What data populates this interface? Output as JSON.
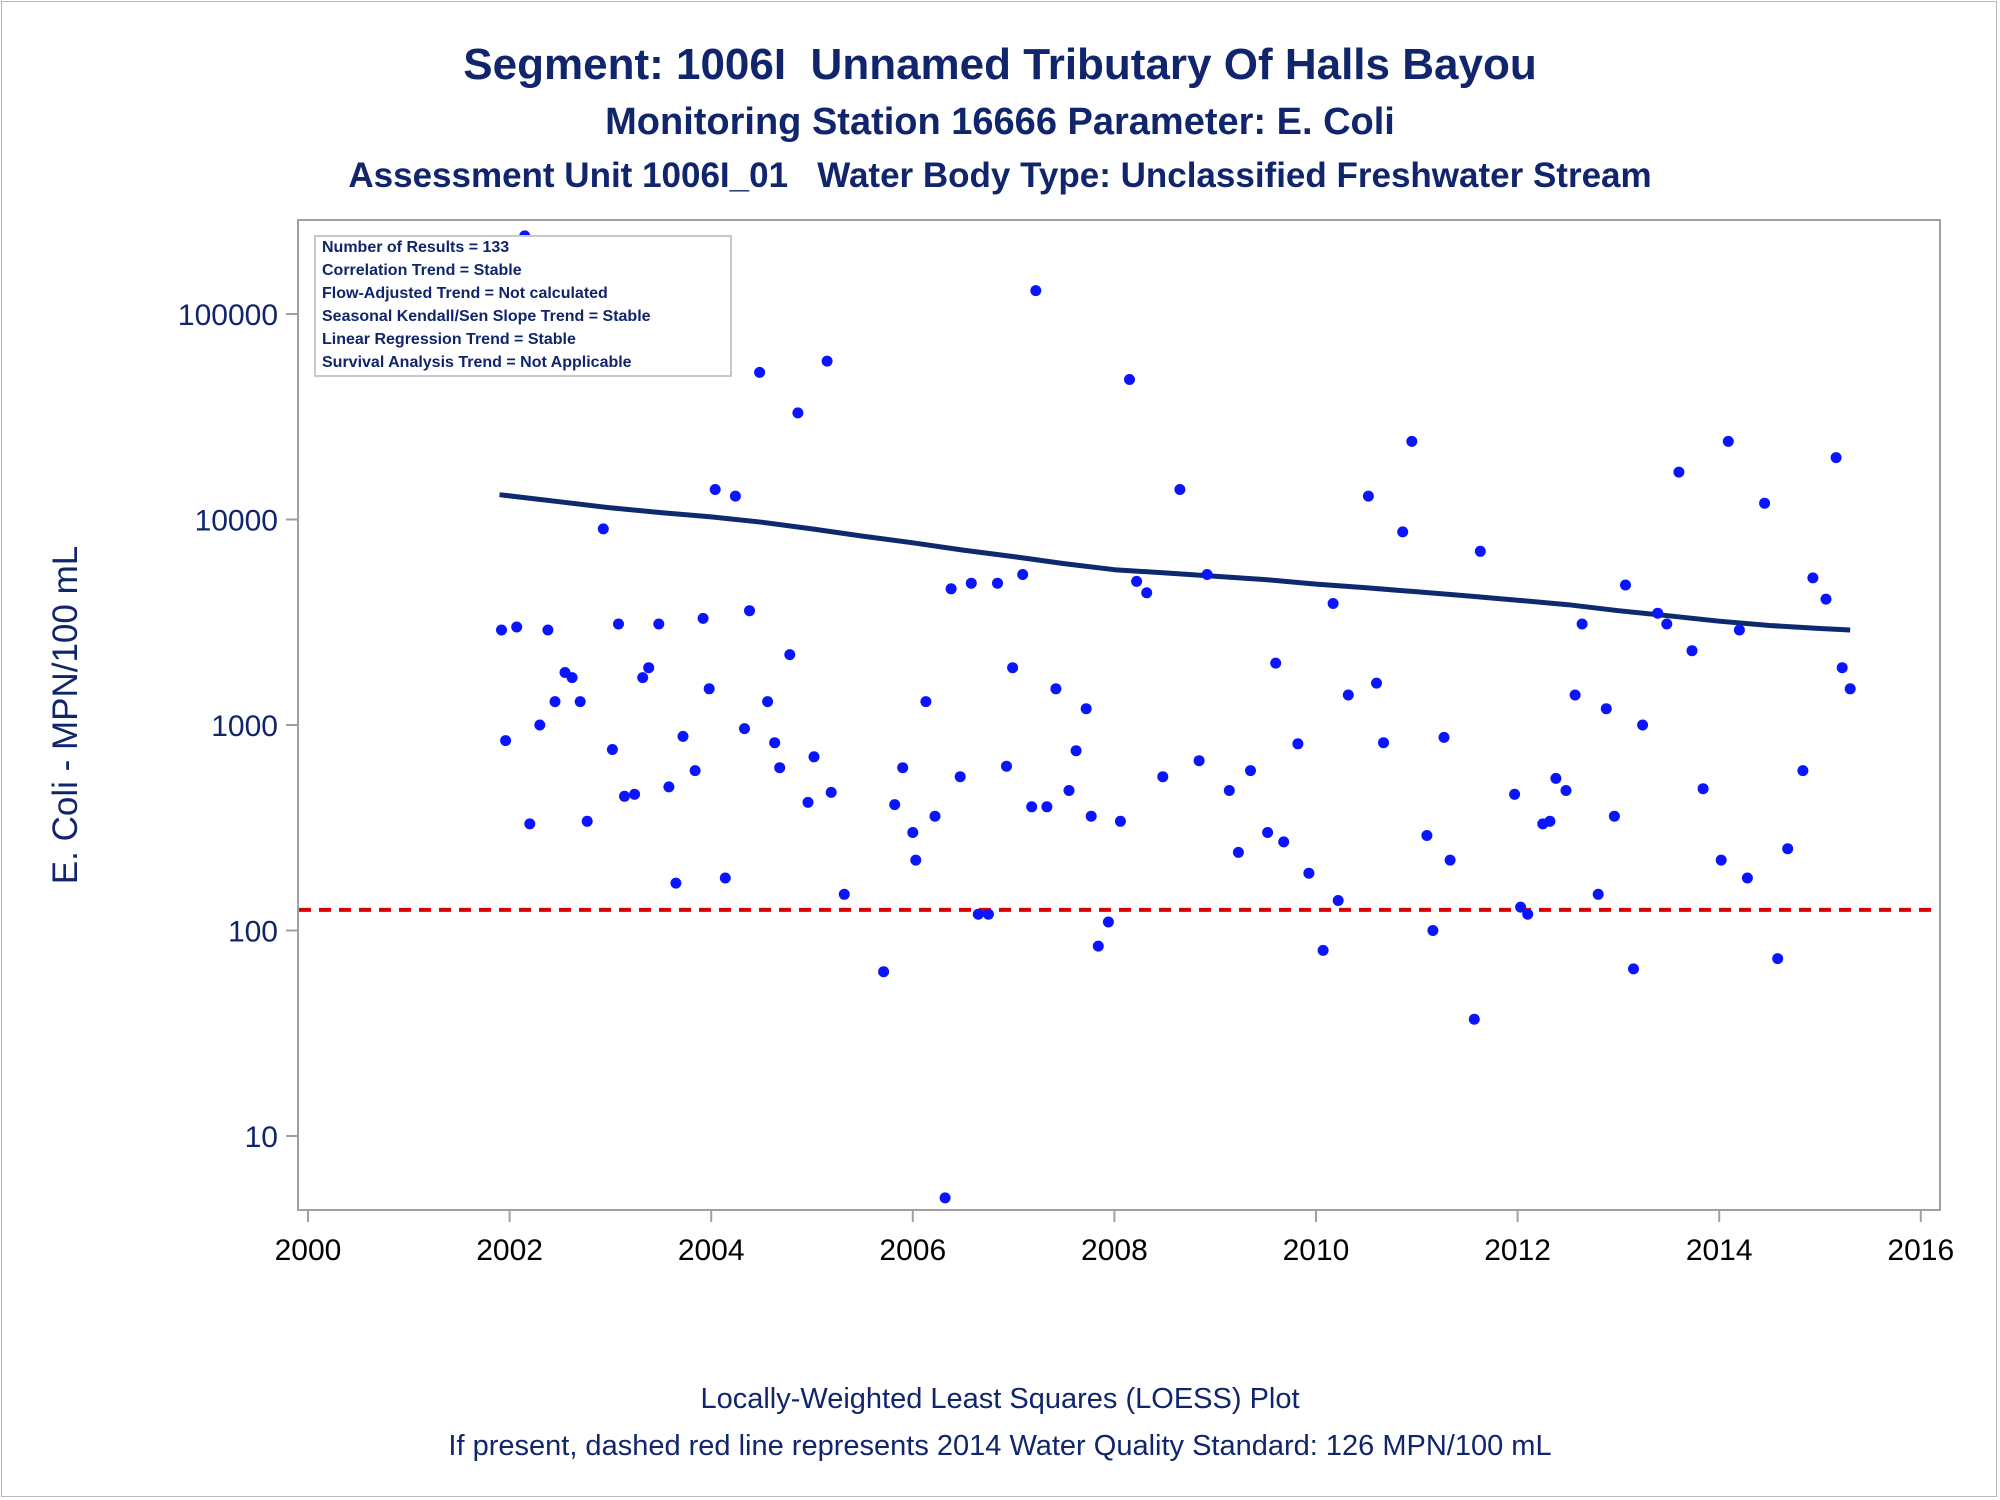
{
  "title": "Segment: 1006I  Unnamed Tributary Of Halls Bayou",
  "subtitle": "Monitoring Station 16666 Parameter: E. Coli",
  "subtitle2": "Assessment Unit 1006I_01   Water Body Type: Unclassified Freshwater Stream",
  "footnote1": "Locally-Weighted Least Squares (LOESS) Plot",
  "footnote2": "If present, dashed red line represents 2014 Water Quality Standard: 126 MPN/100 mL",
  "stats": [
    "Number of Results = 133",
    "Correlation Trend = Stable",
    "Flow-Adjusted Trend = Not calculated",
    "Seasonal Kendall/Sen Slope Trend = Stable",
    "Linear Regression Trend = Stable",
    "Survival Analysis Trend = Not Applicable"
  ],
  "colors": {
    "title": "#10256c",
    "points": "#0a14ff",
    "loess": "#0d2a6e",
    "standard": "#dd0000",
    "frame": "#a0a0a0"
  },
  "chart_data": {
    "type": "scatter",
    "title": "Segment: 1006I  Unnamed Tributary Of Halls Bayou",
    "xlabel": "",
    "ylabel": "E. Coli - MPN/100 mL",
    "yscale": "log",
    "xlim": [
      2000,
      2016
    ],
    "ylim": [
      4.5,
      280000
    ],
    "xticks": [
      2000,
      2002,
      2004,
      2006,
      2008,
      2010,
      2012,
      2014,
      2016
    ],
    "yticks": [
      10,
      100,
      1000,
      10000,
      100000
    ],
    "ytick_labels": [
      "10",
      "100",
      "1000",
      "10000",
      "100000"
    ],
    "grid": false,
    "standard_line": {
      "value": 126,
      "style": "dashed"
    },
    "series": [
      {
        "type": "scatter",
        "points": [
          [
            2001.92,
            2900
          ],
          [
            2001.96,
            840
          ],
          [
            2002.07,
            3000
          ],
          [
            2002.15,
            240000
          ],
          [
            2002.2,
            330
          ],
          [
            2002.3,
            1000
          ],
          [
            2002.38,
            2900
          ],
          [
            2002.45,
            1300
          ],
          [
            2002.55,
            1800
          ],
          [
            2002.62,
            1700
          ],
          [
            2002.7,
            1300
          ],
          [
            2002.77,
            340
          ],
          [
            2002.93,
            9000
          ],
          [
            2003.02,
            760
          ],
          [
            2003.08,
            3100
          ],
          [
            2003.14,
            450
          ],
          [
            2003.24,
            460
          ],
          [
            2003.32,
            1700
          ],
          [
            2003.38,
            1900
          ],
          [
            2003.48,
            3100
          ],
          [
            2003.58,
            500
          ],
          [
            2003.65,
            170
          ],
          [
            2003.72,
            880
          ],
          [
            2003.84,
            600
          ],
          [
            2003.92,
            3300
          ],
          [
            2003.98,
            1500
          ],
          [
            2004.04,
            14000
          ],
          [
            2004.14,
            180
          ],
          [
            2004.24,
            13000
          ],
          [
            2004.33,
            960
          ],
          [
            2004.38,
            3600
          ],
          [
            2004.48,
            52000
          ],
          [
            2004.56,
            1300
          ],
          [
            2004.63,
            820
          ],
          [
            2004.68,
            620
          ],
          [
            2004.78,
            2200
          ],
          [
            2004.86,
            33000
          ],
          [
            2004.96,
            420
          ],
          [
            2005.02,
            700
          ],
          [
            2005.15,
            59000
          ],
          [
            2005.19,
            470
          ],
          [
            2005.32,
            150
          ],
          [
            2005.71,
            63
          ],
          [
            2005.82,
            410
          ],
          [
            2005.9,
            620
          ],
          [
            2006.0,
            300
          ],
          [
            2006.03,
            220
          ],
          [
            2006.13,
            1300
          ],
          [
            2006.22,
            360
          ],
          [
            2006.32,
            5
          ],
          [
            2006.38,
            4600
          ],
          [
            2006.47,
            560
          ],
          [
            2006.58,
            4900
          ],
          [
            2006.65,
            120
          ],
          [
            2006.75,
            120
          ],
          [
            2006.84,
            4900
          ],
          [
            2006.93,
            630
          ],
          [
            2006.99,
            1900
          ],
          [
            2007.09,
            5400
          ],
          [
            2007.18,
            400
          ],
          [
            2007.22,
            130000
          ],
          [
            2007.33,
            400
          ],
          [
            2007.42,
            1500
          ],
          [
            2007.55,
            480
          ],
          [
            2007.62,
            750
          ],
          [
            2007.72,
            1200
          ],
          [
            2007.77,
            360
          ],
          [
            2007.84,
            84
          ],
          [
            2007.94,
            110
          ],
          [
            2008.06,
            340
          ],
          [
            2008.15,
            48000
          ],
          [
            2008.22,
            5000
          ],
          [
            2008.32,
            4400
          ],
          [
            2008.48,
            560
          ],
          [
            2008.65,
            14000
          ],
          [
            2008.84,
            670
          ],
          [
            2008.92,
            5400
          ],
          [
            2009.14,
            480
          ],
          [
            2009.23,
            240
          ],
          [
            2009.35,
            600
          ],
          [
            2009.52,
            300
          ],
          [
            2009.6,
            2000
          ],
          [
            2009.68,
            270
          ],
          [
            2009.82,
            810
          ],
          [
            2009.93,
            190
          ],
          [
            2010.07,
            80
          ],
          [
            2010.17,
            3900
          ],
          [
            2010.22,
            140
          ],
          [
            2010.32,
            1400
          ],
          [
            2010.52,
            13000
          ],
          [
            2010.6,
            1600
          ],
          [
            2010.67,
            820
          ],
          [
            2010.86,
            8700
          ],
          [
            2010.95,
            24000
          ],
          [
            2011.1,
            290
          ],
          [
            2011.16,
            100
          ],
          [
            2011.27,
            870
          ],
          [
            2011.33,
            220
          ],
          [
            2011.57,
            37
          ],
          [
            2011.63,
            7000
          ],
          [
            2011.97,
            460
          ],
          [
            2012.03,
            130
          ],
          [
            2012.1,
            120
          ],
          [
            2012.25,
            330
          ],
          [
            2012.32,
            340
          ],
          [
            2012.38,
            550
          ],
          [
            2012.48,
            480
          ],
          [
            2012.57,
            1400
          ],
          [
            2012.64,
            3100
          ],
          [
            2012.8,
            150
          ],
          [
            2012.88,
            1200
          ],
          [
            2012.96,
            360
          ],
          [
            2013.07,
            4800
          ],
          [
            2013.15,
            65
          ],
          [
            2013.24,
            1000
          ],
          [
            2013.39,
            3500
          ],
          [
            2013.48,
            3100
          ],
          [
            2013.6,
            17000
          ],
          [
            2013.73,
            2300
          ],
          [
            2013.84,
            490
          ],
          [
            2014.02,
            220
          ],
          [
            2014.09,
            24000
          ],
          [
            2014.2,
            2900
          ],
          [
            2014.28,
            180
          ],
          [
            2014.45,
            12000
          ],
          [
            2014.58,
            73
          ],
          [
            2014.68,
            250
          ],
          [
            2014.83,
            600
          ],
          [
            2014.93,
            5200
          ],
          [
            2015.06,
            4100
          ],
          [
            2015.16,
            20000
          ],
          [
            2015.22,
            1900
          ],
          [
            2015.3,
            1500
          ]
        ]
      },
      {
        "type": "line",
        "points": [
          [
            2001.9,
            13200
          ],
          [
            2002.5,
            12200
          ],
          [
            2003.0,
            11400
          ],
          [
            2003.5,
            10800
          ],
          [
            2004.0,
            10300
          ],
          [
            2004.5,
            9700
          ],
          [
            2005.0,
            9000
          ],
          [
            2005.5,
            8300
          ],
          [
            2006.0,
            7700
          ],
          [
            2006.5,
            7100
          ],
          [
            2007.0,
            6600
          ],
          [
            2007.5,
            6100
          ],
          [
            2008.0,
            5700
          ],
          [
            2008.5,
            5500
          ],
          [
            2009.0,
            5300
          ],
          [
            2009.5,
            5100
          ],
          [
            2010.0,
            4850
          ],
          [
            2010.5,
            4650
          ],
          [
            2011.0,
            4450
          ],
          [
            2011.5,
            4250
          ],
          [
            2012.0,
            4050
          ],
          [
            2012.5,
            3850
          ],
          [
            2013.0,
            3600
          ],
          [
            2013.5,
            3400
          ],
          [
            2014.0,
            3200
          ],
          [
            2014.5,
            3050
          ],
          [
            2015.0,
            2950
          ],
          [
            2015.3,
            2900
          ]
        ]
      }
    ]
  }
}
